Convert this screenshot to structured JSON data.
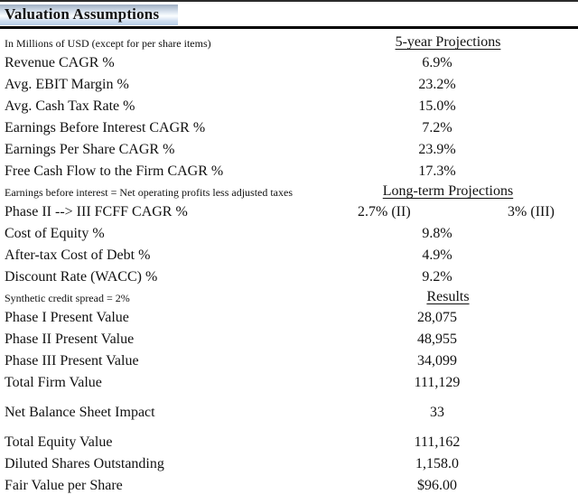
{
  "title": "Valuation Assumptions",
  "subtitle": "In Millions of USD (except for per share items)",
  "colors": {
    "rule_heavy": "#000000",
    "rule_thin": "#9a9a9a",
    "title_gradient_top": "#9fafc3",
    "title_gradient_mid": "#fbfdff",
    "title_gradient_bottom": "#b9cfe9",
    "text": "#111111"
  },
  "sections": [
    {
      "header": "5-year Projections",
      "rows": [
        {
          "label": "Revenue CAGR %",
          "value": "6.9%"
        },
        {
          "label": "Avg. EBIT Margin %",
          "value": "23.2%"
        },
        {
          "label": "Avg. Cash Tax Rate %",
          "value": "15.0%"
        },
        {
          "label": "Earnings Before Interest CAGR %",
          "value": "7.2%"
        },
        {
          "label": "Earnings Per Share CAGR %",
          "value": "23.9%"
        },
        {
          "label": "Free Cash Flow to the Firm CAGR %",
          "value": "17.3%"
        }
      ]
    },
    {
      "note": "Earnings before interest = Net operating profits less adjusted taxes",
      "header": "Long-term Projections",
      "rows": [
        {
          "label": "Phase II --> III FCFF CAGR %",
          "value": "2.7% (II)",
          "value2": "3% (III)"
        },
        {
          "label": "Cost of Equity %",
          "value": "9.8%"
        },
        {
          "label": "After-tax Cost of Debt %",
          "value": "4.9%"
        },
        {
          "label": "Discount Rate (WACC) %",
          "value": "9.2%"
        }
      ]
    },
    {
      "note": "Synthetic credit spread = 2%",
      "header": "Results",
      "rows": [
        {
          "label": "Phase I Present Value",
          "value": "28,075"
        },
        {
          "label": "Phase II Present Value",
          "value": "48,955"
        },
        {
          "label": "Phase III Present Value",
          "value": "34,099"
        },
        {
          "label": "Total Firm Value",
          "value": "111,129"
        }
      ]
    },
    {
      "rows": [
        {
          "label": "Net Balance Sheet Impact",
          "value": "33"
        }
      ]
    },
    {
      "rows": [
        {
          "label": "Total Equity Value",
          "value": "111,162"
        },
        {
          "label": "Diluted Shares Outstanding",
          "value": "1,158.0"
        },
        {
          "label": "Fair Value per Share",
          "value": "$96.00"
        }
      ]
    }
  ]
}
